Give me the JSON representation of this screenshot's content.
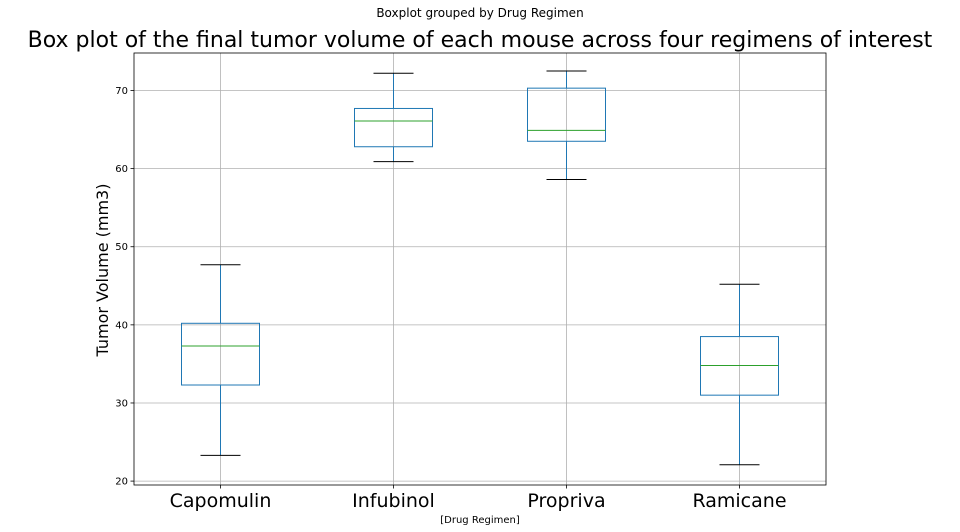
{
  "chart_data": {
    "type": "boxplot",
    "suptitle": "Boxplot grouped by Drug Regimen",
    "title": "Box plot of the final tumor volume of each mouse across four regimens of interest",
    "xlabel": "[Drug Regimen]",
    "ylabel": "Tumor Volume (mm3)",
    "ylim": [
      19.5,
      74.8
    ],
    "yticks": [
      20,
      30,
      40,
      50,
      60,
      70
    ],
    "grid": true,
    "categories": [
      "Capomulin",
      "Infubinol",
      "Propriva",
      "Ramicane"
    ],
    "boxes": [
      {
        "whisker_low": 23.3,
        "q1": 32.3,
        "median": 37.3,
        "q3": 40.2,
        "whisker_high": 47.7
      },
      {
        "whisker_low": 60.9,
        "q1": 62.8,
        "median": 66.1,
        "q3": 67.7,
        "whisker_high": 72.2
      },
      {
        "whisker_low": 58.6,
        "q1": 63.5,
        "median": 64.9,
        "q3": 70.3,
        "whisker_high": 72.5
      },
      {
        "whisker_low": 22.1,
        "q1": 31.0,
        "median": 34.8,
        "q3": 38.5,
        "whisker_high": 45.2
      }
    ],
    "colors": {
      "box": "#1f77b4",
      "median": "#2ca02c",
      "cap": "#000000",
      "grid": "#b0b0b0"
    }
  }
}
